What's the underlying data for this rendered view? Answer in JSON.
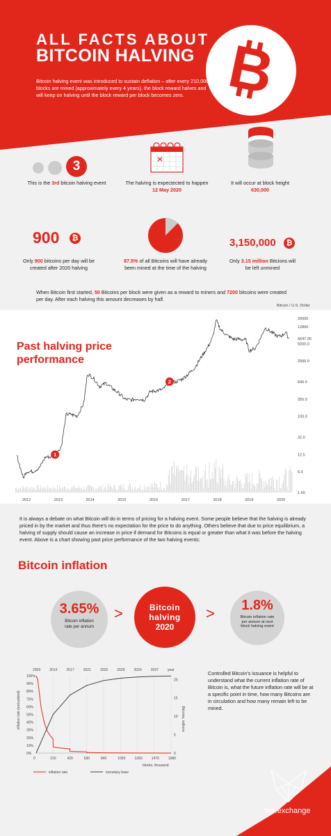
{
  "header": {
    "title_line1": "ALL FACTS ABOUT",
    "title_line2": "BITCOIN HALVING",
    "intro": "Bitcoin halving event was introduced to sustain deflation – after every 210,000 blocks are mined (approximately every 4 years), the block reward halves and will keep on halving until the block reward per block becomes zero.",
    "logo_symbol": "₿"
  },
  "facts_row1": {
    "count": {
      "number": "3",
      "text_pre": "This is the ",
      "text_highlight": "3rd",
      "text_post": " bitcoin halving event"
    },
    "date": {
      "text": "The halving is expectected to happen",
      "highlight": "12 May 2020"
    },
    "height": {
      "text": "It will occur at block height",
      "highlight": "630,000"
    }
  },
  "facts_row2": {
    "per_day": {
      "number": "900",
      "text_pre": "Only ",
      "text_highlight": "900",
      "text_post": " bitcoins per day will be created after 2020 halving"
    },
    "mined": {
      "highlight": "87.5%",
      "text": " of all Bitcoins will have already been mined at the time of the halving",
      "pie_fraction": 0.875
    },
    "unmined": {
      "number": "3,150,000",
      "text_pre": "Only ",
      "text_highlight": "3.15 million",
      "text_post": " Bitcions will be left unmined"
    }
  },
  "reward_note": {
    "p1": "When Bitcoin first started, ",
    "h1": "50",
    "p2": " Bitcoins per block were given as a reward to miners and ",
    "h2": "7200",
    "p3": " bitcoins were created per day. After each halving this amount decreases by half."
  },
  "price_chart": {
    "title_line1": "Past halving price",
    "title_line2": "performance",
    "unit_label": "Bitcoin / U.S. Dollar",
    "current_price": "6647.26",
    "markers": [
      "1",
      "2"
    ]
  },
  "debate_text": "It is always a debate on what Bitcoin will do in terms of pricing for a halving event. Some people believe that the halving is already priced in by the market and thus there's no expectation for the price to do anything. Others believe that due to price equilibrium, a halving of supply should cause an increase in price if demand for Bitcoins is equal or greater than what it was before the halving event. Above is a chart showing past price performance of the two halving events:",
  "inflation": {
    "title": "Bitcoin inflation",
    "current_rate": "3.65%",
    "current_label": "Bitcoin inflation rate per annum",
    "event_label_1": "Bitcoin",
    "event_label_2": "halving",
    "event_label_3": "2020",
    "next_rate": "1.8%",
    "next_label": "Bitcoin inflation rate per annum at next block halving event",
    "arrow": ">"
  },
  "inflation_note": "Controlled Bitcoin's issuance is helpful to understand what the current inflation rate of Bitcoin is, what the future inflation rate will be at a specific point in time, how many Bitcoins are in circulation and how many remain left to be mined.",
  "footer": {
    "brand": "fox.exchange"
  },
  "chart_data": [
    {
      "type": "line",
      "title": "Past halving price performance",
      "ylabel": "Bitcoin / U.S. Dollar",
      "yscale": "log",
      "ylim": [
        1.6,
        20000
      ],
      "ticks_y": [
        "20000",
        "12800",
        "5000.0",
        "2000.0",
        "640.0",
        "250.0",
        "100.0",
        "32.0",
        "12.5",
        "5.0",
        "1.60"
      ],
      "ticks_x": [
        "2012",
        "2013",
        "2014",
        "2015",
        "2016",
        "2017",
        "2018",
        "2019",
        "2020"
      ],
      "series": [
        {
          "x": [
            2011.7,
            2011.9,
            2012.0,
            2012.2,
            2012.4,
            2012.6,
            2012.8,
            2012.95,
            2013.1,
            2013.25,
            2013.4,
            2013.6,
            2013.8,
            2013.92,
            2014.1,
            2014.3,
            2014.5,
            2014.7,
            2014.9,
            2015.1,
            2015.3,
            2015.5,
            2015.7,
            2015.9,
            2016.1,
            2016.3,
            2016.5,
            2016.7,
            2016.9,
            2017.1,
            2017.3,
            2017.5,
            2017.7,
            2017.85,
            2017.97,
            2018.1,
            2018.3,
            2018.5,
            2018.7,
            2018.9,
            2019.0,
            2019.2,
            2019.4,
            2019.5,
            2019.7,
            2019.9,
            2020.05,
            2020.15,
            2020.25
          ],
          "y": [
            12,
            3.5,
            5,
            5,
            6,
            11,
            11,
            13,
            20,
            110,
            110,
            100,
            200,
            1000,
            800,
            500,
            600,
            450,
            350,
            250,
            240,
            260,
            240,
            380,
            400,
            430,
            650,
            640,
            750,
            1000,
            1400,
            2500,
            4200,
            7000,
            18000,
            11000,
            8000,
            6500,
            6500,
            6200,
            3500,
            4000,
            8000,
            12000,
            9500,
            7500,
            8000,
            9500,
            6647.26
          ]
        }
      ],
      "halving_markers": [
        {
          "label": "1",
          "x": 2012.9,
          "y": 12.5
        },
        {
          "label": "2",
          "x": 2016.5,
          "y": 650
        }
      ]
    },
    {
      "type": "line",
      "ticks_x_top": [
        "2009",
        "2013",
        "2017",
        "2021",
        "2025",
        "2029",
        "2033",
        "2037",
        "year"
      ],
      "ticks_x": [
        "0",
        "210",
        "420",
        "630",
        "840",
        "1050",
        "1260",
        "1470",
        "1680"
      ],
      "xlabel": "blocks, thousand",
      "ticks_y_left": [
        "100%",
        "90%",
        "80%",
        "70%",
        "60%",
        "50%",
        "40%",
        "30%",
        "20%",
        "10%",
        "0%"
      ],
      "ylabel_left": "inflation rate (annualized)",
      "ticks_y_right": [
        "20",
        "15",
        "10",
        "5",
        "0"
      ],
      "ylabel_right": "Bitcoins, millions",
      "series": [
        {
          "name": "inflation rate",
          "x": [
            0,
            20,
            60,
            100,
            140,
            180,
            210,
            211,
            300,
            420,
            421,
            630,
            631,
            840,
            1050,
            1260,
            1470,
            1680
          ],
          "y": [
            100,
            95,
            60,
            40,
            28,
            22,
            18,
            8,
            6.5,
            5.4,
            2.2,
            1.6,
            0.7,
            0.4,
            0.2,
            0.1,
            0.05,
            0.02
          ]
        },
        {
          "name": "monetary base",
          "x": [
            0,
            105,
            210,
            315,
            420,
            525,
            630,
            840,
            1050,
            1260,
            1470,
            1680
          ],
          "y": [
            0,
            5.25,
            10.5,
            13.1,
            15.75,
            17.06,
            18.375,
            19.69,
            20.34,
            20.67,
            20.84,
            20.92
          ]
        }
      ]
    }
  ],
  "colors": {
    "accent": "#e1261c",
    "background": "#f1f1f1",
    "gray": "#d4d4d4"
  }
}
